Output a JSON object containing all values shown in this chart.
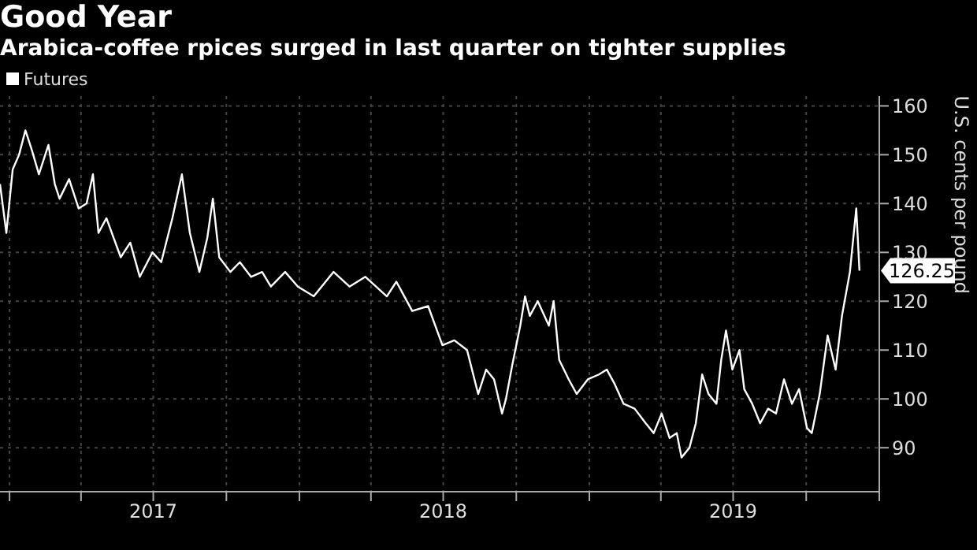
{
  "chart_data": {
    "type": "line",
    "title": "Good Year",
    "subtitle": "Arabica-coffee rpices surged in last quarter on tighter supplies",
    "ylabel": "U.S. cents per pound",
    "x": [
      "2016-12-20",
      "2016-12-28",
      "2017-01-05",
      "2017-01-13",
      "2017-01-21",
      "2017-01-29",
      "2017-02-07",
      "2017-02-19",
      "2017-02-27",
      "2017-03-05",
      "2017-03-17",
      "2017-03-29",
      "2017-04-08",
      "2017-04-16",
      "2017-04-23",
      "2017-05-03",
      "2017-05-21",
      "2017-06-02",
      "2017-06-14",
      "2017-06-30",
      "2017-07-11",
      "2017-07-25",
      "2017-08-06",
      "2017-08-16",
      "2017-08-28",
      "2017-09-07",
      "2017-09-14",
      "2017-09-22",
      "2017-10-06",
      "2017-10-18",
      "2017-11-01",
      "2017-11-15",
      "2017-11-26",
      "2017-12-14",
      "2017-12-30",
      "2018-01-19",
      "2018-02-13",
      "2018-03-05",
      "2018-03-25",
      "2018-04-21",
      "2018-05-03",
      "2018-05-23",
      "2018-06-12",
      "2018-06-30",
      "2018-07-15",
      "2018-07-31",
      "2018-08-14",
      "2018-08-24",
      "2018-09-03",
      "2018-09-13",
      "2018-09-18",
      "2018-09-26",
      "2018-10-06",
      "2018-10-12",
      "2018-10-18",
      "2018-10-28",
      "2018-11-11",
      "2018-11-17",
      "2018-11-24",
      "2018-12-06",
      "2018-12-16",
      "2018-12-30",
      "2019-01-13",
      "2019-01-23",
      "2019-02-02",
      "2019-02-13",
      "2019-02-27",
      "2019-03-13",
      "2019-03-23",
      "2019-04-02",
      "2019-04-12",
      "2019-04-21",
      "2019-04-27",
      "2019-05-07",
      "2019-05-15",
      "2019-05-23",
      "2019-05-31",
      "2019-06-10",
      "2019-06-16",
      "2019-06-22",
      "2019-06-30",
      "2019-07-09",
      "2019-07-15",
      "2019-07-25",
      "2019-08-04",
      "2019-08-14",
      "2019-08-24",
      "2019-09-03",
      "2019-09-13",
      "2019-09-22",
      "2019-10-02",
      "2019-10-08",
      "2019-10-18",
      "2019-10-28",
      "2019-11-07",
      "2019-11-15",
      "2019-11-25",
      "2019-12-03",
      "2019-12-07"
    ],
    "series": [
      {
        "name": "Futures",
        "color": "#ffffff",
        "values": [
          144,
          134,
          147,
          150,
          155,
          151,
          146,
          152,
          144,
          141,
          145,
          139,
          140,
          146,
          134,
          137,
          129,
          132,
          125,
          130,
          128,
          137,
          146,
          134,
          126,
          133,
          141,
          129,
          126,
          128,
          125,
          126,
          123,
          126,
          123,
          121,
          126,
          123,
          125,
          121,
          124,
          118,
          119,
          111,
          112,
          110,
          101,
          106,
          104,
          97,
          100,
          107,
          115,
          121,
          117,
          120,
          115,
          120,
          108,
          104,
          101,
          104,
          105,
          106,
          103,
          99,
          98,
          95,
          93,
          97,
          92,
          93,
          88,
          90,
          95,
          105,
          101,
          99,
          108,
          114,
          106,
          110,
          102,
          99,
          95,
          98,
          97,
          104,
          99,
          102,
          94,
          93,
          101,
          113,
          106,
          117,
          126,
          139,
          126.25
        ]
      }
    ],
    "xlim": [
      "2016-12-20",
      "2020-01-01"
    ],
    "xticks": [
      {
        "value": "2017-01-01",
        "label": null
      },
      {
        "value": "2017-04-01",
        "label": null
      },
      {
        "value": "2017-07-01",
        "label": "2017"
      },
      {
        "value": "2017-10-01",
        "label": null
      },
      {
        "value": "2018-01-01",
        "label": null
      },
      {
        "value": "2018-04-01",
        "label": null
      },
      {
        "value": "2018-07-01",
        "label": "2018"
      },
      {
        "value": "2018-10-01",
        "label": null
      },
      {
        "value": "2019-01-01",
        "label": null
      },
      {
        "value": "2019-04-01",
        "label": null
      },
      {
        "value": "2019-07-01",
        "label": "2019"
      },
      {
        "value": "2019-10-01",
        "label": null
      },
      {
        "value": "2020-01-01",
        "label": null
      }
    ],
    "ylim": [
      81,
      162
    ],
    "yticks": [
      90,
      100,
      110,
      120,
      130,
      140,
      150,
      160
    ],
    "annotations": [
      {
        "text": "126.25",
        "x": "2019-12-07",
        "y": 126.25
      }
    ],
    "grid": true,
    "legend": "top left",
    "marker": "none",
    "line_style": "solid"
  }
}
